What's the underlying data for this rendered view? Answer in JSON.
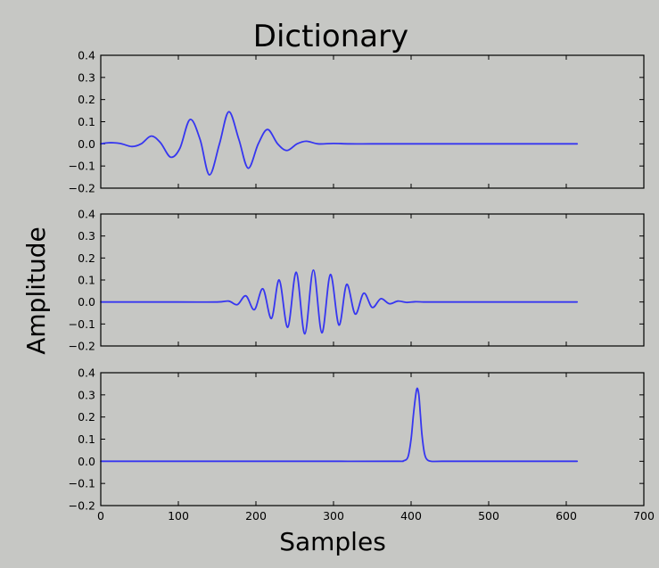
{
  "title": "Dictionary",
  "xlabel": "Samples",
  "ylabel": "Amplitude",
  "colors": {
    "background": "#c6c7c4",
    "line": "#3636f0",
    "axes": "#000000"
  },
  "chart_data": [
    {
      "type": "line",
      "xlim": [
        0,
        700
      ],
      "ylim": [
        -0.2,
        0.4
      ],
      "yticks": [
        "0.4",
        "0.3",
        "0.2",
        "0.1",
        "0.0",
        "−0.1",
        "−0.2"
      ],
      "x": [
        0,
        10,
        25,
        40,
        52,
        65,
        77,
        90,
        102,
        115,
        128,
        140,
        153,
        165,
        178,
        190,
        203,
        215,
        228,
        240,
        253,
        265,
        280,
        300,
        320,
        350,
        400,
        500,
        614
      ],
      "series": [
        {
          "values": [
            0.0,
            0.005,
            0.002,
            -0.012,
            0.0,
            0.035,
            0.005,
            -0.06,
            -0.02,
            0.11,
            0.02,
            -0.14,
            0.0,
            0.145,
            0.02,
            -0.11,
            0.0,
            0.065,
            0.0,
            -0.03,
            0.0,
            0.012,
            0.0,
            0.002,
            0.0,
            0.0,
            0.0,
            0.0,
            0.0
          ]
        }
      ]
    },
    {
      "type": "line",
      "xlim": [
        0,
        700
      ],
      "ylim": [
        -0.2,
        0.4
      ],
      "yticks": [
        "0.4",
        "0.3",
        "0.2",
        "0.1",
        "0.0",
        "−0.1",
        "−0.2"
      ],
      "x": [
        0,
        100,
        150,
        165,
        176,
        187,
        198,
        209,
        220,
        230,
        241,
        252,
        263,
        274,
        285,
        296,
        307,
        317,
        328,
        339,
        350,
        361,
        372,
        383,
        394,
        405,
        416,
        430,
        450,
        500,
        614
      ],
      "series": [
        {
          "values": [
            0.0,
            0.0,
            0.0,
            0.004,
            -0.012,
            0.028,
            -0.035,
            0.06,
            -0.075,
            0.1,
            -0.115,
            0.135,
            -0.145,
            0.145,
            -0.14,
            0.125,
            -0.105,
            0.08,
            -0.055,
            0.04,
            -0.025,
            0.015,
            -0.008,
            0.004,
            -0.002,
            0.001,
            0.0,
            0.0,
            0.0,
            0.0,
            0.0
          ]
        }
      ]
    },
    {
      "type": "line",
      "xlim": [
        0,
        700
      ],
      "ylim": [
        -0.2,
        0.4
      ],
      "yticks": [
        "0.4",
        "0.3",
        "0.2",
        "0.1",
        "0.0",
        "−0.1",
        "−0.2"
      ],
      "xticks": [
        "0",
        "100",
        "200",
        "300",
        "400",
        "500",
        "600",
        "700"
      ],
      "x": [
        0,
        100,
        200,
        300,
        380,
        390,
        396,
        400,
        403,
        406,
        408,
        410,
        412,
        414,
        417,
        420,
        426,
        440,
        500,
        614
      ],
      "series": [
        {
          "values": [
            0.0,
            0.0,
            0.0,
            0.0,
            0.0,
            0.002,
            0.02,
            0.1,
            0.21,
            0.3,
            0.33,
            0.3,
            0.21,
            0.12,
            0.04,
            0.01,
            0.0,
            0.0,
            0.0,
            0.0
          ]
        }
      ]
    }
  ]
}
